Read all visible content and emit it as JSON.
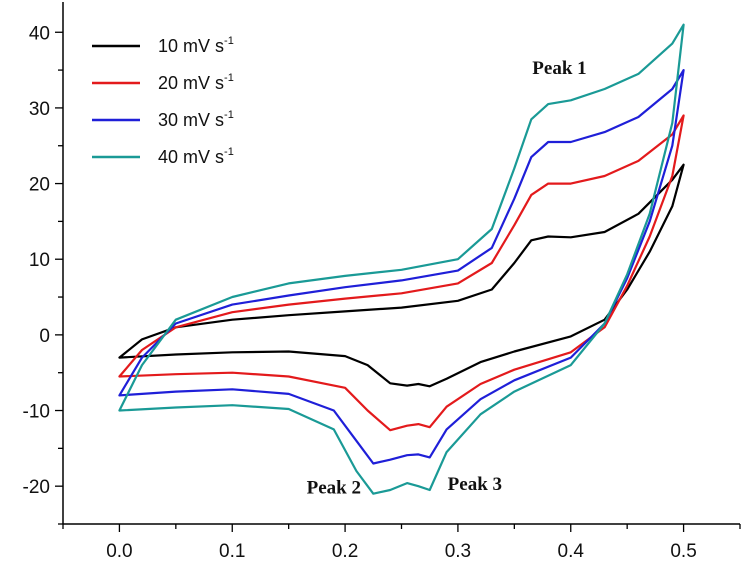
{
  "chart_data": {
    "type": "line",
    "title": "",
    "xlabel": "",
    "ylabel": "",
    "xlim": [
      -0.05,
      0.55
    ],
    "ylim": [
      -25,
      44
    ],
    "x_ticks": [
      "0.0",
      "0.1",
      "0.2",
      "0.3",
      "0.4",
      "0.5"
    ],
    "y_ticks": [
      "40",
      "30",
      "20",
      "10",
      "0",
      "-10",
      "-20"
    ],
    "x_tick_values": [
      0.0,
      0.1,
      0.2,
      0.3,
      0.4,
      0.5
    ],
    "y_tick_values": [
      40,
      30,
      20,
      10,
      0,
      -10,
      -20
    ],
    "grid": false,
    "legend_position": "top-left",
    "series": [
      {
        "name": "10 mV s",
        "name_sup": "-1",
        "color": "#000000",
        "anodic": [
          [
            0.0,
            -3.0
          ],
          [
            0.02,
            -0.6
          ],
          [
            0.05,
            1.0
          ],
          [
            0.1,
            2.0
          ],
          [
            0.15,
            2.6
          ],
          [
            0.2,
            3.1
          ],
          [
            0.25,
            3.6
          ],
          [
            0.3,
            4.5
          ],
          [
            0.33,
            6.0
          ],
          [
            0.35,
            9.5
          ],
          [
            0.365,
            12.5
          ],
          [
            0.38,
            13.0
          ],
          [
            0.4,
            12.9
          ],
          [
            0.43,
            13.6
          ],
          [
            0.46,
            16.0
          ],
          [
            0.49,
            20.5
          ],
          [
            0.5,
            22.5
          ]
        ],
        "cathodic": [
          [
            0.5,
            22.5
          ],
          [
            0.49,
            17.0
          ],
          [
            0.47,
            11.0
          ],
          [
            0.45,
            6.0
          ],
          [
            0.43,
            2.0
          ],
          [
            0.4,
            -0.2
          ],
          [
            0.35,
            -2.2
          ],
          [
            0.32,
            -3.6
          ],
          [
            0.29,
            -5.8
          ],
          [
            0.275,
            -6.8
          ],
          [
            0.265,
            -6.5
          ],
          [
            0.255,
            -6.7
          ],
          [
            0.24,
            -6.4
          ],
          [
            0.22,
            -4.0
          ],
          [
            0.2,
            -2.8
          ],
          [
            0.15,
            -2.2
          ],
          [
            0.1,
            -2.3
          ],
          [
            0.05,
            -2.6
          ],
          [
            0.0,
            -3.0
          ]
        ]
      },
      {
        "name": "20 mV s",
        "name_sup": "-1",
        "color": "#e31a1c",
        "anodic": [
          [
            0.0,
            -5.5
          ],
          [
            0.02,
            -2.0
          ],
          [
            0.05,
            1.0
          ],
          [
            0.1,
            3.0
          ],
          [
            0.15,
            4.0
          ],
          [
            0.2,
            4.8
          ],
          [
            0.25,
            5.5
          ],
          [
            0.3,
            6.8
          ],
          [
            0.33,
            9.5
          ],
          [
            0.35,
            14.5
          ],
          [
            0.365,
            18.5
          ],
          [
            0.38,
            20.0
          ],
          [
            0.4,
            20.0
          ],
          [
            0.43,
            21.0
          ],
          [
            0.46,
            23.0
          ],
          [
            0.49,
            26.5
          ],
          [
            0.5,
            29.0
          ]
        ],
        "cathodic": [
          [
            0.5,
            29.0
          ],
          [
            0.49,
            21.0
          ],
          [
            0.47,
            13.0
          ],
          [
            0.45,
            6.5
          ],
          [
            0.43,
            1.0
          ],
          [
            0.4,
            -2.3
          ],
          [
            0.35,
            -4.6
          ],
          [
            0.32,
            -6.5
          ],
          [
            0.29,
            -9.5
          ],
          [
            0.275,
            -12.2
          ],
          [
            0.265,
            -11.8
          ],
          [
            0.255,
            -12.0
          ],
          [
            0.24,
            -12.6
          ],
          [
            0.22,
            -10.0
          ],
          [
            0.2,
            -7.0
          ],
          [
            0.15,
            -5.5
          ],
          [
            0.1,
            -5.0
          ],
          [
            0.05,
            -5.2
          ],
          [
            0.0,
            -5.5
          ]
        ]
      },
      {
        "name": "30 mV s",
        "name_sup": "-1",
        "color": "#1f1fd8",
        "anodic": [
          [
            0.0,
            -8.0
          ],
          [
            0.02,
            -3.0
          ],
          [
            0.05,
            1.5
          ],
          [
            0.1,
            4.0
          ],
          [
            0.15,
            5.2
          ],
          [
            0.2,
            6.3
          ],
          [
            0.25,
            7.2
          ],
          [
            0.3,
            8.5
          ],
          [
            0.33,
            11.5
          ],
          [
            0.35,
            18.0
          ],
          [
            0.365,
            23.5
          ],
          [
            0.38,
            25.5
          ],
          [
            0.4,
            25.5
          ],
          [
            0.43,
            26.8
          ],
          [
            0.46,
            28.8
          ],
          [
            0.49,
            32.5
          ],
          [
            0.5,
            35.0
          ]
        ],
        "cathodic": [
          [
            0.5,
            35.0
          ],
          [
            0.49,
            25.0
          ],
          [
            0.47,
            15.0
          ],
          [
            0.45,
            7.5
          ],
          [
            0.43,
            1.5
          ],
          [
            0.4,
            -3.0
          ],
          [
            0.35,
            -6.0
          ],
          [
            0.32,
            -8.5
          ],
          [
            0.29,
            -12.5
          ],
          [
            0.275,
            -16.2
          ],
          [
            0.265,
            -15.8
          ],
          [
            0.255,
            -15.9
          ],
          [
            0.24,
            -16.5
          ],
          [
            0.225,
            -17.0
          ],
          [
            0.21,
            -14.0
          ],
          [
            0.19,
            -10.0
          ],
          [
            0.15,
            -7.8
          ],
          [
            0.1,
            -7.2
          ],
          [
            0.05,
            -7.5
          ],
          [
            0.0,
            -8.0
          ]
        ]
      },
      {
        "name": "40 mV s",
        "name_sup": "-1",
        "color": "#1a9a96",
        "anodic": [
          [
            0.0,
            -10.0
          ],
          [
            0.02,
            -4.0
          ],
          [
            0.05,
            2.0
          ],
          [
            0.1,
            5.0
          ],
          [
            0.15,
            6.8
          ],
          [
            0.2,
            7.8
          ],
          [
            0.25,
            8.6
          ],
          [
            0.3,
            10.0
          ],
          [
            0.33,
            14.0
          ],
          [
            0.35,
            22.0
          ],
          [
            0.365,
            28.5
          ],
          [
            0.38,
            30.5
          ],
          [
            0.4,
            31.0
          ],
          [
            0.43,
            32.5
          ],
          [
            0.46,
            34.5
          ],
          [
            0.49,
            38.5
          ],
          [
            0.5,
            41.0
          ]
        ],
        "cathodic": [
          [
            0.5,
            41.0
          ],
          [
            0.49,
            28.0
          ],
          [
            0.47,
            16.0
          ],
          [
            0.45,
            8.0
          ],
          [
            0.43,
            1.5
          ],
          [
            0.4,
            -4.0
          ],
          [
            0.35,
            -7.5
          ],
          [
            0.32,
            -10.5
          ],
          [
            0.29,
            -15.5
          ],
          [
            0.275,
            -20.5
          ],
          [
            0.265,
            -20.0
          ],
          [
            0.255,
            -19.6
          ],
          [
            0.24,
            -20.5
          ],
          [
            0.225,
            -21.0
          ],
          [
            0.21,
            -18.0
          ],
          [
            0.19,
            -12.5
          ],
          [
            0.15,
            -9.8
          ],
          [
            0.1,
            -9.3
          ],
          [
            0.05,
            -9.6
          ],
          [
            0.0,
            -10.0
          ]
        ]
      }
    ],
    "annotations": [
      {
        "text": "Peak 1",
        "x": 0.39,
        "y": 34.5
      },
      {
        "text": "Peak 2",
        "x": 0.19,
        "y": -21.0
      },
      {
        "text": "Peak 3",
        "x": 0.315,
        "y": -20.5
      }
    ]
  }
}
